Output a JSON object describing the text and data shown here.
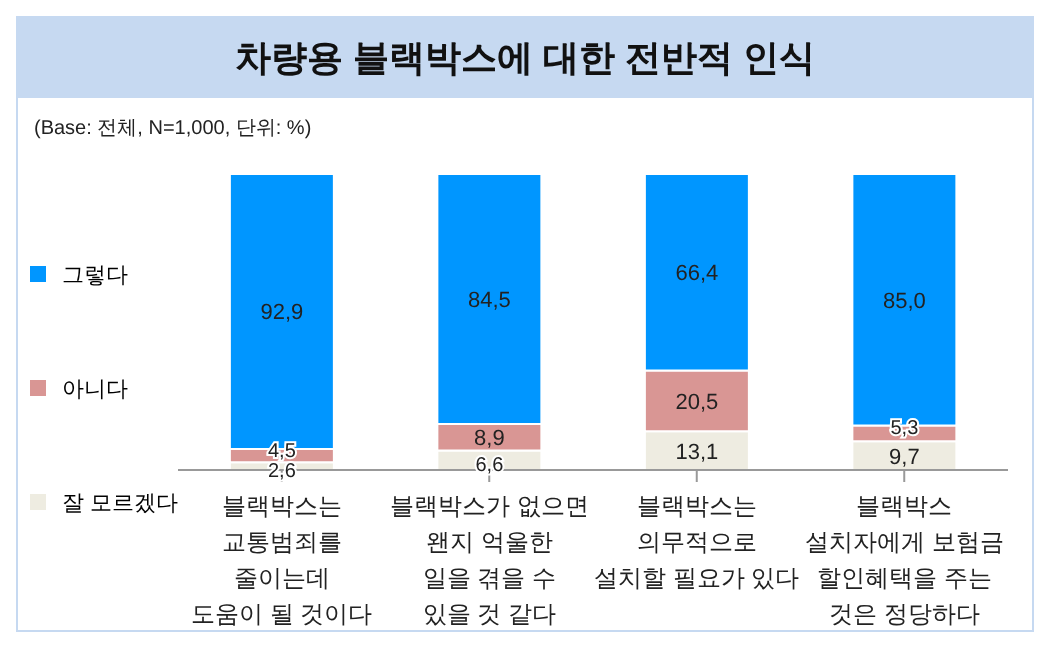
{
  "chart_data": {
    "type": "bar",
    "stacked": true,
    "title": "차량용 블랙박스에 대한 전반적 인식",
    "subtitle": "(Base: 전체, N=1,000, 단위: %)",
    "categories": [
      "블랙박스는\n교통범죄를\n줄이는데\n도움이 될 것이다",
      "블랙박스가 없으면\n왠지 억울한\n일을 겪을 수\n있을 것 같다",
      "블랙박스는\n의무적으로\n설치할 필요가 있다",
      "블랙박스\n설치자에게 보험금\n할인혜택을 주는\n것은 정당하다"
    ],
    "series": [
      {
        "name": "잘 모르겠다",
        "color": "#eeece1",
        "values": [
          2.6,
          6.6,
          13.1,
          9.7
        ],
        "value_labels": [
          "2,6",
          "6,6",
          "13,1",
          "9,7"
        ]
      },
      {
        "name": "아니다",
        "color": "#d99694",
        "values": [
          4.5,
          8.9,
          20.5,
          5.3
        ],
        "value_labels": [
          "4,5",
          "8,9",
          "20,5",
          "5,3"
        ]
      },
      {
        "name": "그렇다",
        "color": "#0096ff",
        "values": [
          92.9,
          84.5,
          66.4,
          85.0
        ],
        "value_labels": [
          "92,9",
          "84,5",
          "66,4",
          "85,0"
        ]
      }
    ],
    "legend": "left",
    "grid": false
  }
}
